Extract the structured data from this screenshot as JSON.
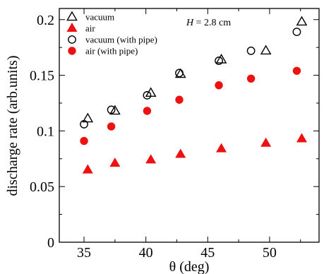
{
  "chart_data": {
    "type": "scatter",
    "xlabel": "θ (deg)",
    "ylabel": "discharge rate (arb.units)",
    "xlim": [
      33,
      54
    ],
    "ylim": [
      0,
      0.21
    ],
    "x_ticks": [
      35,
      40,
      45,
      50
    ],
    "y_ticks": [
      0,
      0.05,
      0.1,
      0.15,
      0.2
    ],
    "x_tick_labels": [
      "35",
      "40",
      "45",
      "50"
    ],
    "y_tick_labels": [
      "0",
      "0.05",
      "0.1",
      "0.15",
      "0.2"
    ],
    "legend_position": "top-left",
    "annotation": {
      "label": "H",
      "text": " = 2.8 cm"
    },
    "series": [
      {
        "name": "vacuum",
        "marker": "triangle-open",
        "color": "#000000",
        "x": [
          35.3,
          37.5,
          40.4,
          42.8,
          46.1,
          49.7,
          52.6
        ],
        "y": [
          0.111,
          0.118,
          0.134,
          0.151,
          0.164,
          0.172,
          0.198
        ]
      },
      {
        "name": "air",
        "marker": "triangle-filled",
        "color": "#ee1111",
        "x": [
          35.3,
          37.5,
          40.4,
          42.8,
          46.1,
          49.7,
          52.6
        ],
        "y": [
          0.065,
          0.071,
          0.074,
          0.079,
          0.084,
          0.089,
          0.093
        ]
      },
      {
        "name": "vacuum (with pipe)",
        "marker": "circle-open",
        "color": "#000000",
        "x": [
          35.0,
          37.2,
          40.1,
          42.7,
          45.9,
          48.5,
          52.2
        ],
        "y": [
          0.106,
          0.119,
          0.132,
          0.152,
          0.163,
          0.172,
          0.189
        ]
      },
      {
        "name": "air (with pipe)",
        "marker": "circle-filled",
        "color": "#ee1111",
        "x": [
          35.0,
          37.2,
          40.1,
          42.7,
          45.9,
          48.5,
          52.2
        ],
        "y": [
          0.091,
          0.104,
          0.118,
          0.128,
          0.141,
          0.147,
          0.154
        ]
      }
    ]
  }
}
